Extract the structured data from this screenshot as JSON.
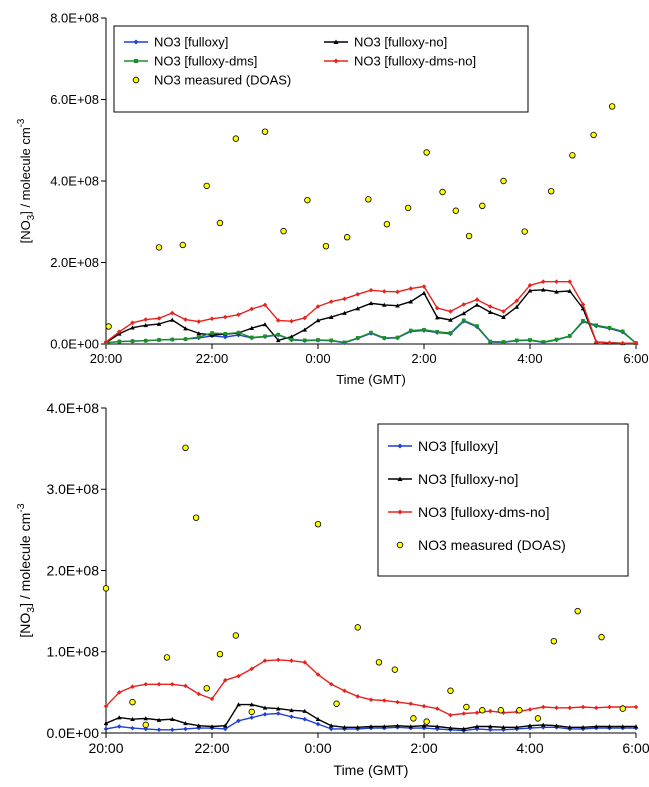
{
  "chart_data": [
    {
      "type": "line",
      "xlabel": "Time (GMT)",
      "ylabel": "[NO3] / molecule cm-3",
      "ylabel_parts": {
        "pre": "[NO",
        "sub": "3",
        "mid": "] / molecule cm",
        "sup": "-3"
      },
      "xlim": [
        20,
        30
      ],
      "ylim": [
        0,
        800000000
      ],
      "x_ticks": [
        {
          "v": 20,
          "label": "20:00"
        },
        {
          "v": 22,
          "label": "22:00"
        },
        {
          "v": 24,
          "label": "0:00"
        },
        {
          "v": 26,
          "label": "2:00"
        },
        {
          "v": 28,
          "label": "4:00"
        },
        {
          "v": 30,
          "label": "6:00"
        }
      ],
      "y_ticks": [
        {
          "v": 0,
          "label": "0.0E+00"
        },
        {
          "v": 200000000,
          "label": "2.0E+08"
        },
        {
          "v": 400000000,
          "label": "4.0E+08"
        },
        {
          "v": 600000000,
          "label": "6.0E+08"
        },
        {
          "v": 800000000,
          "label": "8.0E+08"
        }
      ],
      "grid": false,
      "legend_position": "top, inside plot, two columns",
      "series": [
        {
          "name": "NO3 [fulloxy]",
          "color": "#1f3fd8",
          "marker": "diamond",
          "x": [
            20,
            20.25,
            20.5,
            20.75,
            21,
            21.25,
            21.5,
            21.75,
            22,
            22.25,
            22.5,
            22.75,
            23,
            23.25,
            23.5,
            23.75,
            24,
            24.25,
            24.5,
            24.75,
            25,
            25.25,
            25.5,
            25.75,
            26,
            26.25,
            26.5,
            26.75,
            27,
            27.25,
            27.5,
            27.75,
            28,
            28.25,
            28.5,
            28.75,
            29,
            29.25,
            29.5,
            29.75,
            30
          ],
          "y": [
            3000000,
            6000000,
            7000000,
            8000000,
            10000000,
            11000000,
            12000000,
            15000000,
            20000000,
            17000000,
            22000000,
            15000000,
            18000000,
            22000000,
            10000000,
            8000000,
            9000000,
            8000000,
            3000000,
            14000000,
            26000000,
            14000000,
            15000000,
            31000000,
            33000000,
            28000000,
            25000000,
            56000000,
            42000000,
            5000000,
            4000000,
            8000000,
            9000000,
            4000000,
            10000000,
            19000000,
            55000000,
            44000000,
            38000000,
            29000000,
            2000000
          ]
        },
        {
          "name": "NO3 [fulloxy-no]",
          "color": "#000000",
          "marker": "triangle",
          "x": [
            20,
            20.25,
            20.5,
            20.75,
            21,
            21.25,
            21.5,
            21.75,
            22,
            22.25,
            22.5,
            22.75,
            23,
            23.25,
            23.5,
            23.75,
            24,
            24.25,
            24.5,
            24.75,
            25,
            25.25,
            25.5,
            25.75,
            26,
            26.25,
            26.5,
            26.75,
            27,
            27.25,
            27.5,
            27.75,
            28,
            28.25,
            28.5,
            28.75,
            29,
            29.25,
            29.5,
            29.75,
            30
          ],
          "y": [
            3000000,
            25000000,
            40000000,
            46000000,
            49000000,
            59000000,
            38000000,
            26000000,
            22000000,
            24000000,
            27000000,
            39000000,
            48000000,
            9000000,
            18000000,
            35000000,
            58000000,
            66000000,
            76000000,
            87000000,
            100000000,
            96000000,
            94000000,
            104000000,
            125000000,
            65000000,
            59000000,
            75000000,
            96000000,
            78000000,
            66000000,
            91000000,
            131000000,
            133000000,
            128000000,
            130000000,
            87000000,
            5000000,
            3000000,
            2000000,
            2000000
          ]
        },
        {
          "name": "NO3 [fulloxy-dms]",
          "color": "#1a8f2a",
          "marker": "square",
          "x": [
            20,
            20.25,
            20.5,
            20.75,
            21,
            21.25,
            21.5,
            21.75,
            22,
            22.25,
            22.5,
            22.75,
            23,
            23.25,
            23.5,
            23.75,
            24,
            24.25,
            24.5,
            24.75,
            25,
            25.25,
            25.5,
            25.75,
            26,
            26.25,
            26.5,
            26.75,
            27,
            27.25,
            27.5,
            27.75,
            28,
            28.25,
            28.5,
            28.75,
            29,
            29.25,
            29.5,
            29.75,
            30
          ],
          "y": [
            3000000,
            6000000,
            7000000,
            8000000,
            10000000,
            11000000,
            12000000,
            17000000,
            27000000,
            25000000,
            28000000,
            16000000,
            19000000,
            23000000,
            11000000,
            9000000,
            10000000,
            9000000,
            4000000,
            15000000,
            28000000,
            15000000,
            16000000,
            33000000,
            35000000,
            30000000,
            27000000,
            58000000,
            44000000,
            6000000,
            5000000,
            9000000,
            10000000,
            5000000,
            11000000,
            20000000,
            57000000,
            46000000,
            40000000,
            31000000,
            2000000
          ]
        },
        {
          "name": "NO3 [fulloxy-dms-no]",
          "color": "#e8231e",
          "marker": "diamond",
          "x": [
            20,
            20.25,
            20.5,
            20.75,
            21,
            21.25,
            21.5,
            21.75,
            22,
            22.25,
            22.5,
            22.75,
            23,
            23.25,
            23.5,
            23.75,
            24,
            24.25,
            24.5,
            24.75,
            25,
            25.25,
            25.5,
            25.75,
            26,
            26.25,
            26.5,
            26.75,
            27,
            27.25,
            27.5,
            27.75,
            28,
            28.25,
            28.5,
            28.75,
            29,
            29.25,
            29.5,
            29.75,
            30
          ],
          "y": [
            5000000,
            30000000,
            52000000,
            60000000,
            63000000,
            76000000,
            60000000,
            55000000,
            62000000,
            66000000,
            72000000,
            86000000,
            96000000,
            58000000,
            56000000,
            64000000,
            92000000,
            104000000,
            111000000,
            122000000,
            132000000,
            129000000,
            128000000,
            136000000,
            141000000,
            88000000,
            80000000,
            97000000,
            109000000,
            92000000,
            80000000,
            106000000,
            144000000,
            153000000,
            153000000,
            153000000,
            97000000,
            5000000,
            3000000,
            2000000,
            2000000
          ]
        },
        {
          "name": "NO3 measured (DOAS)",
          "color": "#ffff00",
          "marker": "circle",
          "points_only": true,
          "x": [
            20.05,
            21,
            21.45,
            21.9,
            22.15,
            22.45,
            23,
            23.35,
            23.8,
            24.15,
            24.55,
            24.95,
            25.3,
            25.7,
            26.05,
            26.35,
            26.6,
            26.85,
            27.1,
            27.5,
            27.9,
            28.4,
            28.8,
            29.2,
            29.55
          ],
          "y": [
            43000000,
            237000000,
            243000000,
            388000000,
            297000000,
            504000000,
            521000000,
            277000000,
            353000000,
            240000000,
            262000000,
            355000000,
            294000000,
            334000000,
            470000000,
            373000000,
            327000000,
            265000000,
            339000000,
            400000000,
            276000000,
            375000000,
            463000000,
            513000000,
            583000000
          ]
        }
      ],
      "legend": [
        {
          "label": "NO3 [fulloxy]",
          "series": 0
        },
        {
          "label": "NO3 [fulloxy-no]",
          "series": 1
        },
        {
          "label": "NO3 [fulloxy-dms]",
          "series": 2
        },
        {
          "label": "NO3 [fulloxy-dms-no]",
          "series": 3
        },
        {
          "label": "NO3 measured (DOAS)",
          "series": 4
        }
      ]
    },
    {
      "type": "line",
      "xlabel": "Time (GMT)",
      "ylabel": "[NO3] / molecule cm-3",
      "ylabel_parts": {
        "pre": "[NO",
        "sub": "3",
        "mid": "] / molecule cm",
        "sup": "-3"
      },
      "xlim": [
        20,
        30
      ],
      "ylim": [
        0,
        400000000
      ],
      "x_ticks": [
        {
          "v": 20,
          "label": "20:00"
        },
        {
          "v": 22,
          "label": "22:00"
        },
        {
          "v": 24,
          "label": "0:00"
        },
        {
          "v": 26,
          "label": "2:00"
        },
        {
          "v": 28,
          "label": "4:00"
        },
        {
          "v": 30,
          "label": "6:00"
        }
      ],
      "y_ticks": [
        {
          "v": 0,
          "label": "0.0E+00"
        },
        {
          "v": 100000000,
          "label": "1.0E+08"
        },
        {
          "v": 200000000,
          "label": "2.0E+08"
        },
        {
          "v": 300000000,
          "label": "3.0E+08"
        },
        {
          "v": 400000000,
          "label": "4.0E+08"
        }
      ],
      "grid": false,
      "legend_position": "top-right, inside plot",
      "series": [
        {
          "name": "NO3 [fulloxy]",
          "color": "#1f3fd8",
          "marker": "diamond",
          "x": [
            20,
            20.25,
            20.5,
            20.75,
            21,
            21.25,
            21.5,
            21.75,
            22,
            22.25,
            22.5,
            22.75,
            23,
            23.25,
            23.5,
            23.75,
            24,
            24.25,
            24.5,
            24.75,
            25,
            25.25,
            25.5,
            25.75,
            26,
            26.25,
            26.5,
            26.75,
            27,
            27.25,
            27.5,
            27.75,
            28,
            28.25,
            28.5,
            28.75,
            29,
            29.25,
            29.5,
            29.75,
            30
          ],
          "y": [
            5000000,
            8000000,
            6000000,
            5000000,
            4000000,
            4000000,
            5000000,
            6000000,
            6000000,
            5000000,
            15000000,
            19000000,
            23000000,
            24000000,
            20000000,
            17000000,
            11000000,
            5000000,
            5000000,
            5000000,
            6000000,
            6000000,
            7000000,
            6000000,
            6000000,
            5000000,
            4000000,
            3000000,
            5000000,
            4000000,
            4000000,
            5000000,
            6000000,
            7000000,
            7000000,
            5000000,
            5000000,
            6000000,
            6000000,
            6000000,
            6000000
          ]
        },
        {
          "name": "NO3 [fulloxy-no]",
          "color": "#000000",
          "marker": "triangle",
          "x": [
            20,
            20.25,
            20.5,
            20.75,
            21,
            21.25,
            21.5,
            21.75,
            22,
            22.25,
            22.5,
            22.75,
            23,
            23.25,
            23.5,
            23.75,
            24,
            24.25,
            24.5,
            24.75,
            25,
            25.25,
            25.5,
            25.75,
            26,
            26.25,
            26.5,
            26.75,
            27,
            27.25,
            27.5,
            27.75,
            28,
            28.25,
            28.5,
            28.75,
            29,
            29.25,
            29.5,
            29.75,
            30
          ],
          "y": [
            12000000,
            19000000,
            17000000,
            18000000,
            16000000,
            17000000,
            12000000,
            9000000,
            8000000,
            9000000,
            35000000,
            35000000,
            31000000,
            30000000,
            28000000,
            27000000,
            17000000,
            9000000,
            7000000,
            7000000,
            8000000,
            8000000,
            9000000,
            8000000,
            9000000,
            8000000,
            6000000,
            5000000,
            8000000,
            8000000,
            7000000,
            7000000,
            9000000,
            10000000,
            9000000,
            7000000,
            7000000,
            8000000,
            8000000,
            8000000,
            8000000
          ]
        },
        {
          "name": "NO3 [fulloxy-dms-no]",
          "color": "#e8231e",
          "marker": "diamond",
          "x": [
            20,
            20.25,
            20.5,
            20.75,
            21,
            21.25,
            21.5,
            21.75,
            22,
            22.25,
            22.5,
            22.75,
            23,
            23.25,
            23.5,
            23.75,
            24,
            24.25,
            24.5,
            24.75,
            25,
            25.25,
            25.5,
            25.75,
            26,
            26.25,
            26.5,
            26.75,
            27,
            27.25,
            27.5,
            27.75,
            28,
            28.25,
            28.5,
            28.75,
            29,
            29.25,
            29.5,
            29.75,
            30
          ],
          "y": [
            33000000,
            50000000,
            57000000,
            60000000,
            60000000,
            60000000,
            58000000,
            48000000,
            42000000,
            65000000,
            70000000,
            79000000,
            89000000,
            90000000,
            89000000,
            87000000,
            72000000,
            60000000,
            52000000,
            45000000,
            41000000,
            40000000,
            38000000,
            36000000,
            33000000,
            30000000,
            22000000,
            24000000,
            25000000,
            27000000,
            25000000,
            26000000,
            29000000,
            32000000,
            31000000,
            31000000,
            32000000,
            31000000,
            32000000,
            32000000,
            32000000
          ]
        },
        {
          "name": "NO3 measured (DOAS)",
          "color": "#ffff00",
          "marker": "circle",
          "points_only": true,
          "x": [
            20,
            20.5,
            20.75,
            21.15,
            21.5,
            21.7,
            21.9,
            22.15,
            22.45,
            22.75,
            24,
            24.35,
            24.75,
            25.15,
            25.45,
            25.8,
            26.05,
            26.5,
            26.8,
            27.1,
            27.45,
            27.8,
            28.15,
            28.45,
            28.9,
            29.35,
            29.75
          ],
          "y": [
            178000000,
            38000000,
            10000000,
            93000000,
            351000000,
            265000000,
            55000000,
            97000000,
            120000000,
            26000000,
            257000000,
            36000000,
            130000000,
            87000000,
            78000000,
            18000000,
            14000000,
            52000000,
            32000000,
            28000000,
            28000000,
            28000000,
            18000000,
            113000000,
            150000000,
            118000000,
            30000000
          ]
        }
      ],
      "legend": [
        {
          "label": "NO3 [fulloxy]",
          "series": 0
        },
        {
          "label": "NO3 [fulloxy-no]",
          "series": 1
        },
        {
          "label": "NO3 [fulloxy-dms-no]",
          "series": 2
        },
        {
          "label": "NO3 measured (DOAS)",
          "series": 3
        }
      ]
    }
  ]
}
